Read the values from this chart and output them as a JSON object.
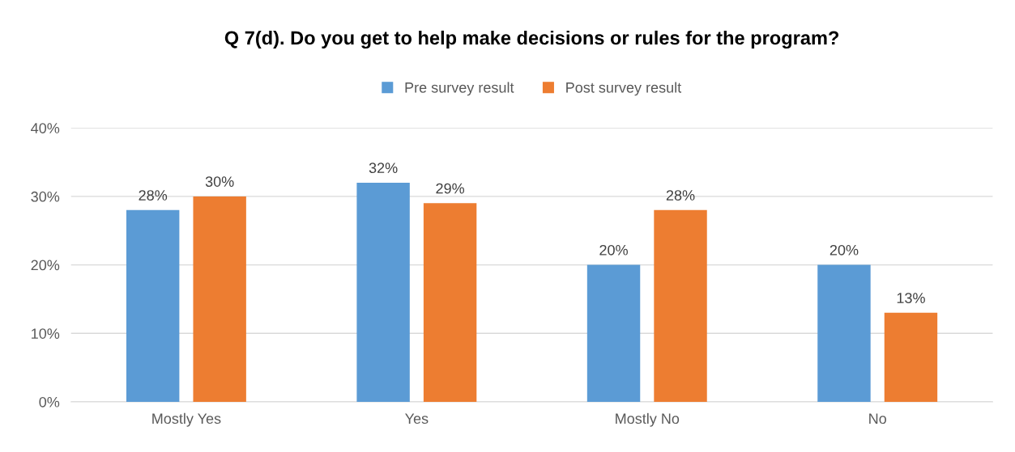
{
  "chart_data": {
    "type": "bar",
    "title": "Q 7(d). Do you get to help make decisions or rules for the program?",
    "categories": [
      "Mostly Yes",
      "Yes",
      "Mostly No",
      "No"
    ],
    "series": [
      {
        "name": "Pre survey result",
        "color": "#5b9bd5",
        "values": [
          28,
          32,
          20,
          20
        ],
        "value_labels": [
          "28%",
          "32%",
          "20%",
          "20%"
        ]
      },
      {
        "name": "Post survey result",
        "color": "#ed7d31",
        "values": [
          30,
          29,
          28,
          13
        ],
        "value_labels": [
          "30%",
          "29%",
          "28%",
          "13%"
        ]
      }
    ],
    "ylim": [
      0,
      40
    ],
    "yticks": [
      {
        "value": 0,
        "label": "0%"
      },
      {
        "value": 10,
        "label": "10%"
      },
      {
        "value": 20,
        "label": "20%"
      },
      {
        "value": 30,
        "label": "30%"
      },
      {
        "value": 40,
        "label": "40%"
      }
    ],
    "grid": "y",
    "legend": "top"
  }
}
